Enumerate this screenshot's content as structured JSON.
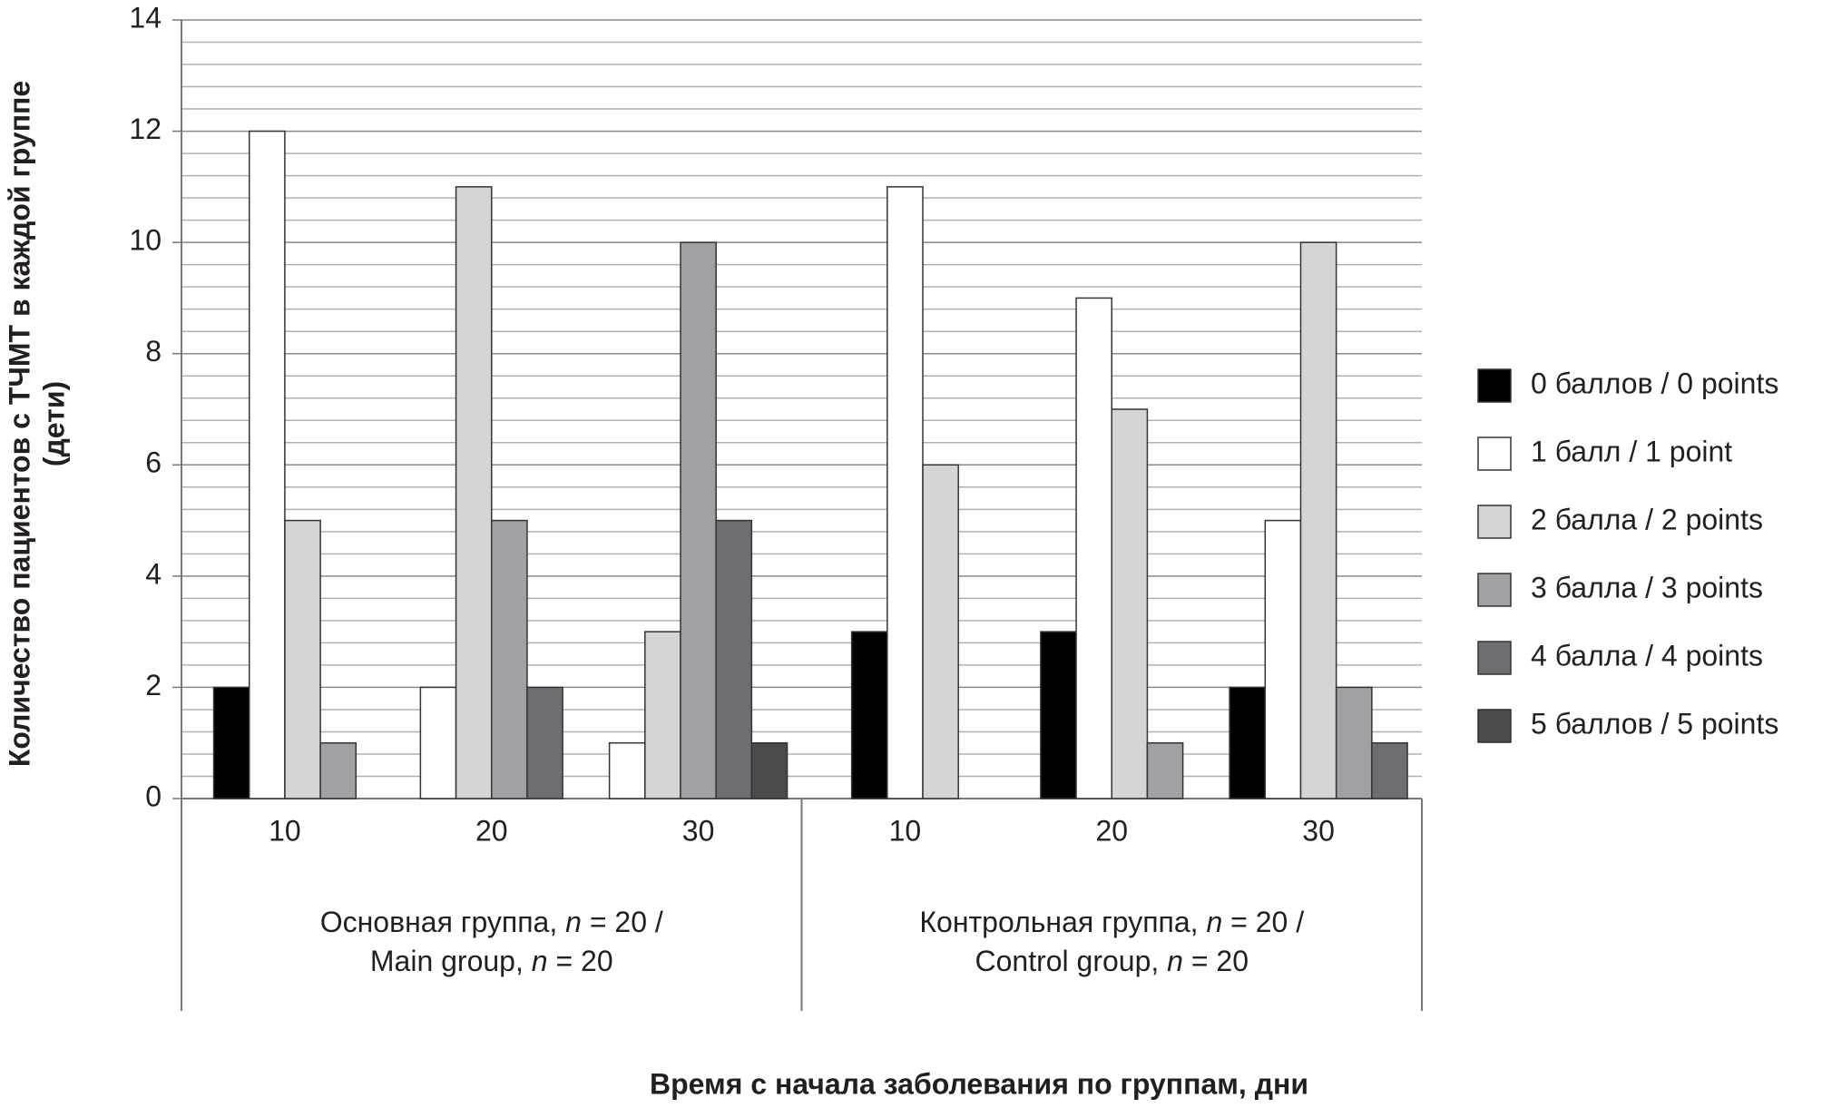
{
  "chart_data": {
    "type": "bar",
    "y_label": [
      "Количество пациентов с ТЧМТ в каждой группе",
      "(дети)"
    ],
    "x_label": "Время с начала заболевания по группам, дни",
    "categories": [
      "10",
      "20",
      "30",
      "10",
      "20",
      "30"
    ],
    "groups": [
      {
        "label": [
          [
            {
              "text": "Основная группа, "
            },
            {
              "text": "n",
              "italic": true
            },
            {
              "text": " = 20 /"
            }
          ],
          [
            {
              "text": "Main group, "
            },
            {
              "text": "n",
              "italic": true
            },
            {
              "text": " = 20"
            }
          ]
        ]
      },
      {
        "label": [
          [
            {
              "text": "Контрольная группа, "
            },
            {
              "text": "n",
              "italic": true
            },
            {
              "text": " = 20 /"
            }
          ],
          [
            {
              "text": "Control group, "
            },
            {
              "text": "n",
              "italic": true
            },
            {
              "text": " = 20"
            }
          ]
        ]
      }
    ],
    "series": [
      {
        "name": "0 баллов / 0 points",
        "color": "#000000",
        "values": [
          2,
          null,
          null,
          3,
          3,
          2
        ]
      },
      {
        "name": "1 балл / 1 point",
        "color": "#ffffff",
        "values": [
          12,
          2,
          1,
          11,
          9,
          5
        ]
      },
      {
        "name": "2 балла / 2 points",
        "color": "#d4d5d7",
        "values": [
          5,
          11,
          3,
          6,
          7,
          10
        ]
      },
      {
        "name": "3 балла / 3 points",
        "color": "#a0a1a4",
        "values": [
          1,
          5,
          10,
          null,
          1,
          2
        ]
      },
      {
        "name": "4 балла / 4 points",
        "color": "#6d6e71",
        "values": [
          null,
          2,
          5,
          null,
          null,
          1
        ]
      },
      {
        "name": "5 баллов / 5 points",
        "color": "#4a4a4d",
        "values": [
          null,
          null,
          1,
          null,
          null,
          null
        ]
      }
    ],
    "ylim": [
      0,
      14
    ],
    "yticks": [
      0,
      2,
      4,
      6,
      8,
      10,
      12,
      14
    ],
    "grid": true,
    "legend": "right"
  }
}
